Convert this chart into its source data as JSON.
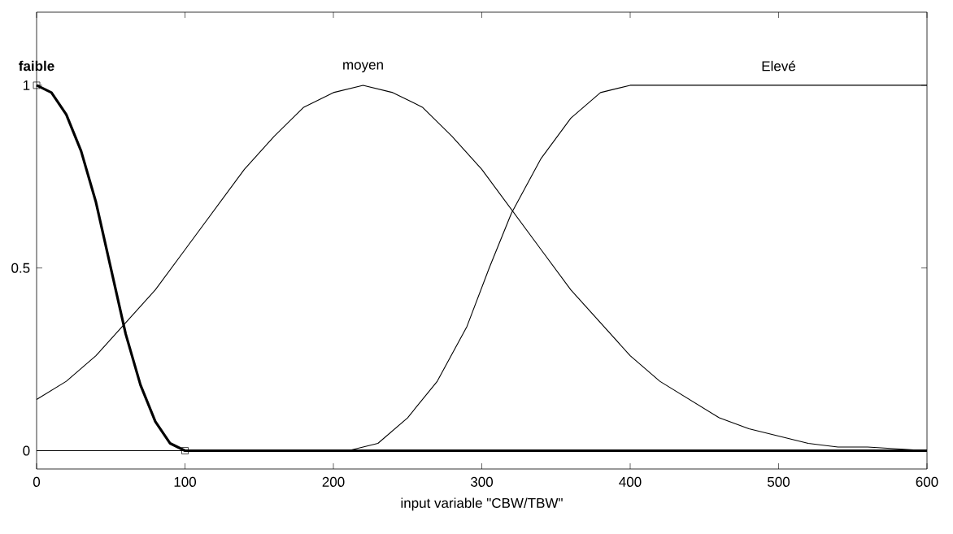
{
  "chart_data": {
    "type": "line",
    "xlabel": "input variable \"CBW/TBW\"",
    "xlim": [
      0,
      600
    ],
    "ylim": [
      -0.05,
      1.2
    ],
    "xticks": [
      0,
      100,
      200,
      300,
      400,
      500,
      600
    ],
    "yticks": [
      0,
      0.5,
      1
    ],
    "grid": false,
    "legend": false,
    "series": [
      {
        "name": "faible",
        "color": "#000000",
        "x": [
          0,
          10,
          20,
          30,
          40,
          50,
          60,
          70,
          80,
          90,
          100,
          200,
          300,
          400,
          500,
          600
        ],
        "values": [
          1,
          0.98,
          0.92,
          0.82,
          0.68,
          0.5,
          0.32,
          0.18,
          0.08,
          0.02,
          0,
          0,
          0,
          0,
          0,
          0
        ]
      },
      {
        "name": "moyen",
        "color": "#000000",
        "x": [
          0,
          20,
          40,
          60,
          80,
          100,
          120,
          140,
          160,
          180,
          200,
          220,
          240,
          260,
          280,
          300,
          320,
          340,
          360,
          380,
          400,
          420,
          440,
          460,
          480,
          500,
          520,
          540,
          560,
          600
        ],
        "values": [
          0.14,
          0.19,
          0.26,
          0.35,
          0.44,
          0.55,
          0.66,
          0.77,
          0.86,
          0.94,
          0.98,
          1,
          0.98,
          0.94,
          0.86,
          0.77,
          0.66,
          0.55,
          0.44,
          0.35,
          0.26,
          0.19,
          0.14,
          0.09,
          0.06,
          0.04,
          0.02,
          0.01,
          0.01,
          0
        ]
      },
      {
        "name": "Elevé",
        "color": "#000000",
        "x": [
          0,
          210,
          230,
          250,
          270,
          290,
          305,
          320,
          340,
          360,
          380,
          400,
          600
        ],
        "values": [
          0,
          0,
          0.02,
          0.09,
          0.19,
          0.34,
          0.5,
          0.65,
          0.8,
          0.91,
          0.98,
          1,
          1
        ]
      },
      {
        "type": "scatter",
        "marker": "square",
        "color": "#000000",
        "x": [
          0,
          100
        ],
        "values": [
          1,
          0
        ]
      }
    ]
  }
}
